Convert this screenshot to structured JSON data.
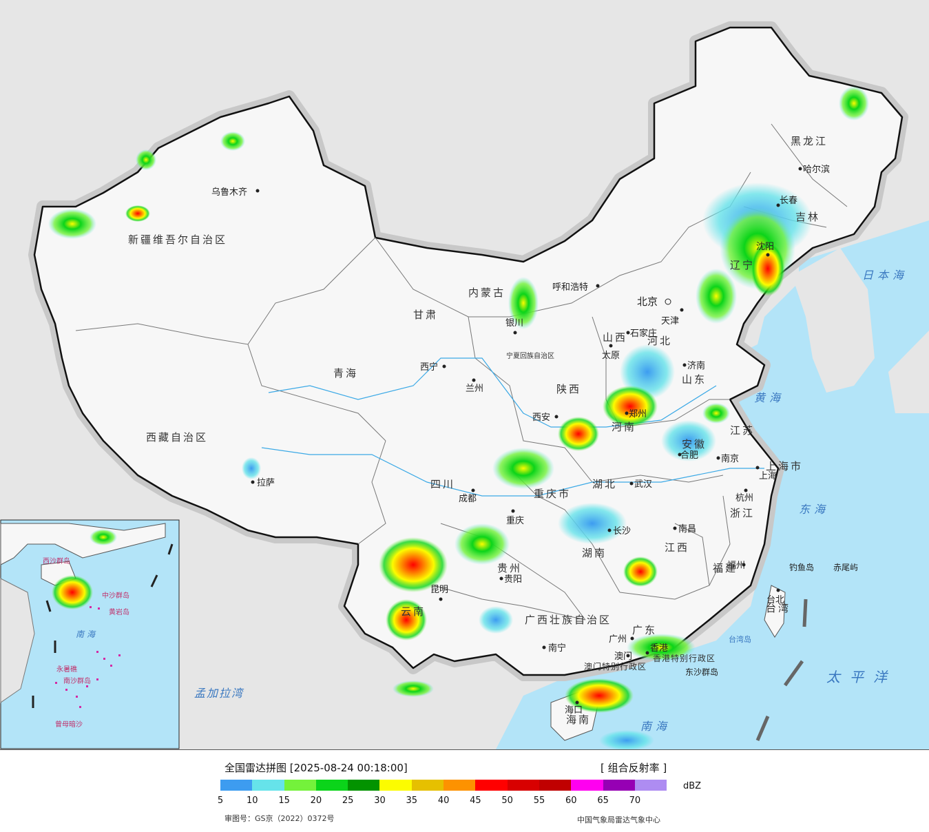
{
  "legend": {
    "title": "全国雷达拼图 [2025-08-24 00:18:00]",
    "product": "[ 组合反射率 ]",
    "unit": "dBZ",
    "ticks": [
      "5",
      "10",
      "15",
      "20",
      "25",
      "30",
      "35",
      "40",
      "45",
      "50",
      "55",
      "60",
      "65",
      "70"
    ],
    "colors": [
      "#3d9cf0",
      "#66e3ea",
      "#74f23b",
      "#0bd41a",
      "#039300",
      "#fcfc00",
      "#e6c000",
      "#fd9200",
      "#ff0000",
      "#d80000",
      "#c00000",
      "#ff00f0",
      "#9600b4",
      "#ae8cf2"
    ],
    "approval": "审图号：GS京（2022）0372号",
    "source": "中国气象局雷达气象中心"
  },
  "map": {
    "provinces": [
      "新疆维吾尔自治区",
      "西藏自治区",
      "青海",
      "甘肃",
      "内蒙古",
      "四川",
      "云南",
      "黑龙江",
      "吉林",
      "辽宁",
      "河北",
      "山西",
      "山东",
      "河南",
      "陕西",
      "湖北",
      "湖南",
      "江西",
      "安徽",
      "江苏",
      "浙江",
      "福建",
      "广东",
      "广西壮族自治区",
      "贵州",
      "重庆市",
      "上海市",
      "海南",
      "台湾",
      "香港特别行政区",
      "澳门特别行政区",
      "宁夏回族自治区"
    ],
    "cities": [
      "乌鲁木齐",
      "拉萨",
      "西宁",
      "兰州",
      "银川",
      "呼和浩特",
      "北京",
      "天津",
      "石家庄",
      "太原",
      "济南",
      "郑州",
      "西安",
      "成都",
      "重庆",
      "武汉",
      "合肥",
      "南京",
      "上海",
      "杭州",
      "南昌",
      "长沙",
      "福州",
      "台北",
      "贵阳",
      "昆明",
      "南宁",
      "广州",
      "香港",
      "澳门",
      "海口",
      "沈阳",
      "长春",
      "哈尔滨"
    ],
    "seas": [
      "日本海",
      "黄海",
      "东海",
      "太平洋",
      "南海",
      "孟加拉湾"
    ],
    "islands": [
      "钓鱼岛",
      "赤尾屿",
      "台湾岛",
      "东沙群岛",
      "中沙群岛",
      "西沙群岛",
      "南沙群岛",
      "黄岩岛",
      "永暑礁",
      "曾母暗沙"
    ]
  }
}
